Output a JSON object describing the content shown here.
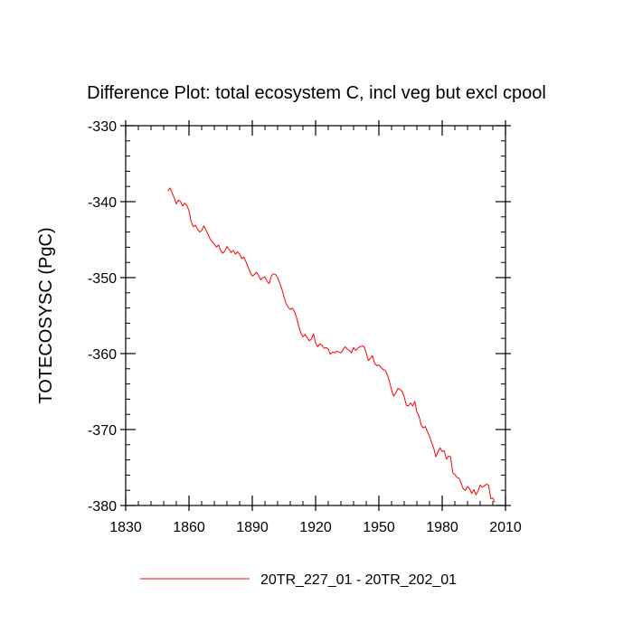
{
  "chart_data": {
    "type": "line",
    "title": "Difference Plot: total ecosystem C, incl veg but excl cpool",
    "xlabel": "",
    "ylabel": "TOTECOSYSC  (PgC)",
    "xlim": [
      1830,
      2010
    ],
    "ylim": [
      -380,
      -330
    ],
    "xticks": [
      1830,
      1860,
      1890,
      1920,
      1950,
      1980,
      2010
    ],
    "xtick_labels": [
      "1830",
      "1860",
      "1890",
      "1920",
      "1950",
      "1980",
      "2010"
    ],
    "yticks": [
      -380,
      -370,
      -360,
      -350,
      -340,
      -330
    ],
    "ytick_labels": [
      "-380",
      "-370",
      "-360",
      "-350",
      "-340",
      "-330"
    ],
    "x_minor_step": 6,
    "y_minor_step": 2,
    "legend_position": "bottom-center",
    "series": [
      {
        "name": "20TR_227_01 - 20TR_202_01",
        "color": "#ff0000",
        "x": [
          1850,
          1851,
          1852,
          1853,
          1854,
          1855,
          1856,
          1857,
          1858,
          1859,
          1860,
          1861,
          1862,
          1863,
          1864,
          1865,
          1866,
          1867,
          1868,
          1869,
          1870,
          1871,
          1872,
          1873,
          1874,
          1875,
          1876,
          1877,
          1878,
          1879,
          1880,
          1881,
          1882,
          1883,
          1884,
          1885,
          1886,
          1887,
          1888,
          1889,
          1890,
          1891,
          1892,
          1893,
          1894,
          1895,
          1896,
          1897,
          1898,
          1899,
          1900,
          1901,
          1902,
          1903,
          1904,
          1905,
          1906,
          1907,
          1908,
          1909,
          1910,
          1911,
          1912,
          1913,
          1914,
          1915,
          1916,
          1917,
          1918,
          1919,
          1920,
          1921,
          1922,
          1923,
          1924,
          1925,
          1926,
          1927,
          1928,
          1929,
          1930,
          1931,
          1932,
          1933,
          1934,
          1935,
          1936,
          1937,
          1938,
          1939,
          1940,
          1941,
          1942,
          1943,
          1944,
          1945,
          1946,
          1947,
          1948,
          1949,
          1950,
          1951,
          1952,
          1953,
          1954,
          1955,
          1956,
          1957,
          1958,
          1959,
          1960,
          1961,
          1962,
          1963,
          1964,
          1965,
          1966,
          1967,
          1968,
          1969,
          1970,
          1971,
          1972,
          1973,
          1974,
          1975,
          1976,
          1977,
          1978,
          1979,
          1980,
          1981,
          1982,
          1983,
          1984,
          1985,
          1986,
          1987,
          1988,
          1989,
          1990,
          1991,
          1992,
          1993,
          1994,
          1995,
          1996,
          1997,
          1998,
          1999,
          2000,
          2001,
          2002,
          2003,
          2004,
          2005
        ],
        "values": [
          -338.6,
          -338.2,
          -338.8,
          -339.5,
          -340.3,
          -339.8,
          -340.0,
          -340.6,
          -340.2,
          -340.5,
          -341.2,
          -342.6,
          -343.3,
          -343.1,
          -343.6,
          -344.0,
          -343.8,
          -343.2,
          -343.7,
          -344.3,
          -344.9,
          -345.3,
          -345.6,
          -346.0,
          -345.7,
          -346.4,
          -346.8,
          -346.5,
          -345.9,
          -346.3,
          -346.7,
          -346.4,
          -346.9,
          -346.6,
          -346.9,
          -347.5,
          -347.3,
          -347.9,
          -348.6,
          -349.3,
          -349.8,
          -349.6,
          -349.3,
          -349.7,
          -350.3,
          -350.0,
          -349.9,
          -350.5,
          -350.8,
          -349.8,
          -349.5,
          -349.6,
          -350.0,
          -350.7,
          -351.5,
          -352.5,
          -353.4,
          -353.9,
          -354.2,
          -354.0,
          -354.5,
          -355.3,
          -356.4,
          -357.3,
          -357.8,
          -357.5,
          -357.9,
          -358.3,
          -358.1,
          -357.4,
          -358.6,
          -359.1,
          -358.7,
          -358.9,
          -359.3,
          -359.2,
          -359.4,
          -360.1,
          -359.8,
          -359.9,
          -359.7,
          -359.8,
          -359.9,
          -359.5,
          -359.1,
          -359.4,
          -359.6,
          -359.9,
          -359.2,
          -359.6,
          -359.3,
          -359.1,
          -359.0,
          -359.1,
          -359.9,
          -360.9,
          -360.6,
          -360.3,
          -361.3,
          -361.6,
          -361.5,
          -361.8,
          -362.1,
          -362.2,
          -362.8,
          -363.7,
          -364.8,
          -365.6,
          -365.2,
          -364.6,
          -364.7,
          -365.0,
          -365.7,
          -366.8,
          -366.9,
          -366.5,
          -366.9,
          -366.3,
          -367.7,
          -368.2,
          -369.4,
          -369.8,
          -369.6,
          -370.3,
          -370.9,
          -371.7,
          -372.5,
          -373.6,
          -372.9,
          -372.4,
          -372.9,
          -372.8,
          -373.9,
          -373.5,
          -373.6,
          -375.7,
          -375.9,
          -376.3,
          -376.4,
          -377.1,
          -377.8,
          -378.0,
          -377.5,
          -377.8,
          -378.4,
          -377.9,
          -378.6,
          -378.1,
          -377.3,
          -377.6,
          -377.4,
          -377.2,
          -377.3,
          -379.1,
          -379.0,
          -379.6
        ]
      }
    ]
  }
}
